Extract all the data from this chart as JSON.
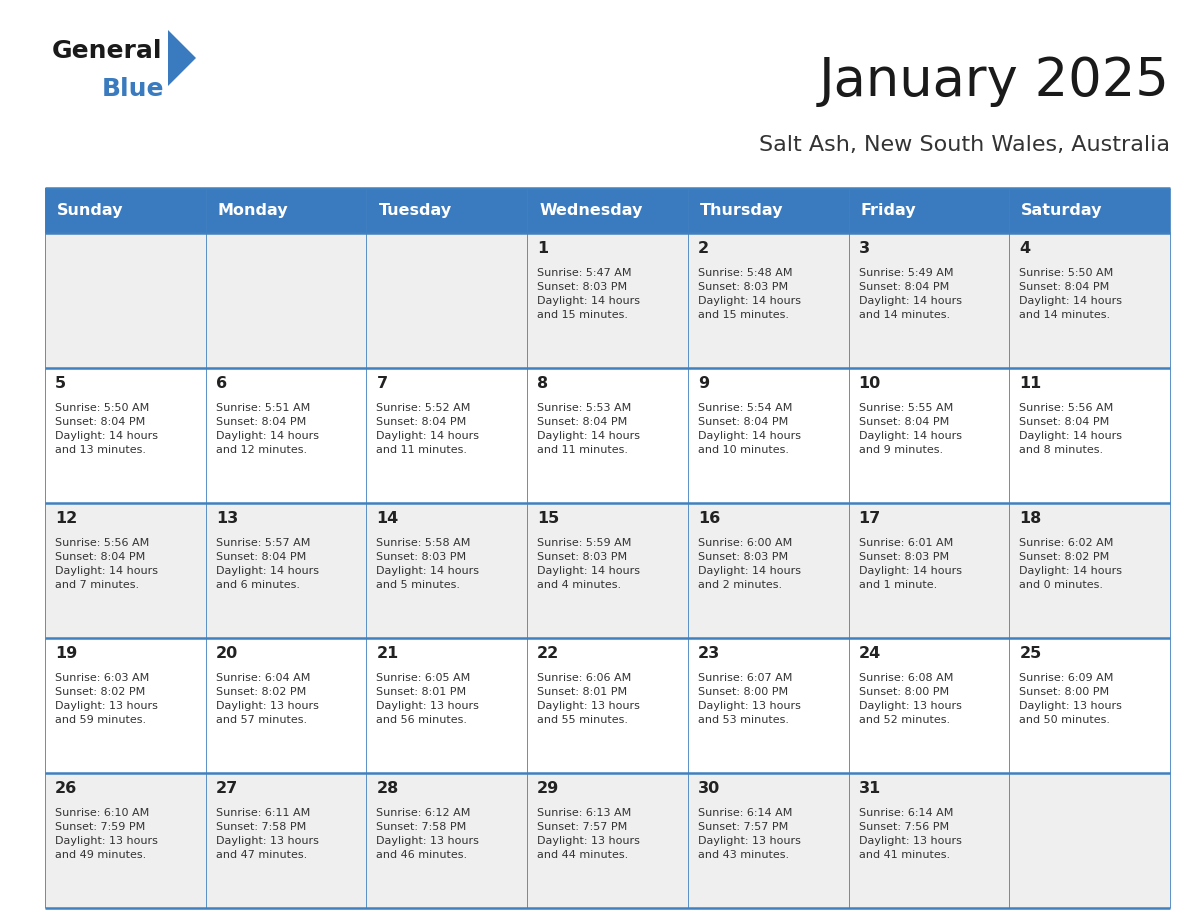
{
  "title": "January 2025",
  "subtitle": "Salt Ash, New South Wales, Australia",
  "days_of_week": [
    "Sunday",
    "Monday",
    "Tuesday",
    "Wednesday",
    "Thursday",
    "Friday",
    "Saturday"
  ],
  "header_bg": "#3a7abf",
  "header_text": "#ffffff",
  "row_bg_odd": "#efefef",
  "row_bg_even": "#ffffff",
  "cell_border_color": "#4080bf",
  "day_number_color": "#222222",
  "text_color": "#333333",
  "title_color": "#1a1a1a",
  "subtitle_color": "#333333",
  "logo_general_color": "#1a1a1a",
  "logo_blue_color": "#3a7abf",
  "logo_triangle_color": "#3a7abf",
  "calendar_data": [
    [
      {
        "day": null,
        "info": null
      },
      {
        "day": null,
        "info": null
      },
      {
        "day": null,
        "info": null
      },
      {
        "day": 1,
        "info": "Sunrise: 5:47 AM\nSunset: 8:03 PM\nDaylight: 14 hours\nand 15 minutes."
      },
      {
        "day": 2,
        "info": "Sunrise: 5:48 AM\nSunset: 8:03 PM\nDaylight: 14 hours\nand 15 minutes."
      },
      {
        "day": 3,
        "info": "Sunrise: 5:49 AM\nSunset: 8:04 PM\nDaylight: 14 hours\nand 14 minutes."
      },
      {
        "day": 4,
        "info": "Sunrise: 5:50 AM\nSunset: 8:04 PM\nDaylight: 14 hours\nand 14 minutes."
      }
    ],
    [
      {
        "day": 5,
        "info": "Sunrise: 5:50 AM\nSunset: 8:04 PM\nDaylight: 14 hours\nand 13 minutes."
      },
      {
        "day": 6,
        "info": "Sunrise: 5:51 AM\nSunset: 8:04 PM\nDaylight: 14 hours\nand 12 minutes."
      },
      {
        "day": 7,
        "info": "Sunrise: 5:52 AM\nSunset: 8:04 PM\nDaylight: 14 hours\nand 11 minutes."
      },
      {
        "day": 8,
        "info": "Sunrise: 5:53 AM\nSunset: 8:04 PM\nDaylight: 14 hours\nand 11 minutes."
      },
      {
        "day": 9,
        "info": "Sunrise: 5:54 AM\nSunset: 8:04 PM\nDaylight: 14 hours\nand 10 minutes."
      },
      {
        "day": 10,
        "info": "Sunrise: 5:55 AM\nSunset: 8:04 PM\nDaylight: 14 hours\nand 9 minutes."
      },
      {
        "day": 11,
        "info": "Sunrise: 5:56 AM\nSunset: 8:04 PM\nDaylight: 14 hours\nand 8 minutes."
      }
    ],
    [
      {
        "day": 12,
        "info": "Sunrise: 5:56 AM\nSunset: 8:04 PM\nDaylight: 14 hours\nand 7 minutes."
      },
      {
        "day": 13,
        "info": "Sunrise: 5:57 AM\nSunset: 8:04 PM\nDaylight: 14 hours\nand 6 minutes."
      },
      {
        "day": 14,
        "info": "Sunrise: 5:58 AM\nSunset: 8:03 PM\nDaylight: 14 hours\nand 5 minutes."
      },
      {
        "day": 15,
        "info": "Sunrise: 5:59 AM\nSunset: 8:03 PM\nDaylight: 14 hours\nand 4 minutes."
      },
      {
        "day": 16,
        "info": "Sunrise: 6:00 AM\nSunset: 8:03 PM\nDaylight: 14 hours\nand 2 minutes."
      },
      {
        "day": 17,
        "info": "Sunrise: 6:01 AM\nSunset: 8:03 PM\nDaylight: 14 hours\nand 1 minute."
      },
      {
        "day": 18,
        "info": "Sunrise: 6:02 AM\nSunset: 8:02 PM\nDaylight: 14 hours\nand 0 minutes."
      }
    ],
    [
      {
        "day": 19,
        "info": "Sunrise: 6:03 AM\nSunset: 8:02 PM\nDaylight: 13 hours\nand 59 minutes."
      },
      {
        "day": 20,
        "info": "Sunrise: 6:04 AM\nSunset: 8:02 PM\nDaylight: 13 hours\nand 57 minutes."
      },
      {
        "day": 21,
        "info": "Sunrise: 6:05 AM\nSunset: 8:01 PM\nDaylight: 13 hours\nand 56 minutes."
      },
      {
        "day": 22,
        "info": "Sunrise: 6:06 AM\nSunset: 8:01 PM\nDaylight: 13 hours\nand 55 minutes."
      },
      {
        "day": 23,
        "info": "Sunrise: 6:07 AM\nSunset: 8:00 PM\nDaylight: 13 hours\nand 53 minutes."
      },
      {
        "day": 24,
        "info": "Sunrise: 6:08 AM\nSunset: 8:00 PM\nDaylight: 13 hours\nand 52 minutes."
      },
      {
        "day": 25,
        "info": "Sunrise: 6:09 AM\nSunset: 8:00 PM\nDaylight: 13 hours\nand 50 minutes."
      }
    ],
    [
      {
        "day": 26,
        "info": "Sunrise: 6:10 AM\nSunset: 7:59 PM\nDaylight: 13 hours\nand 49 minutes."
      },
      {
        "day": 27,
        "info": "Sunrise: 6:11 AM\nSunset: 7:58 PM\nDaylight: 13 hours\nand 47 minutes."
      },
      {
        "day": 28,
        "info": "Sunrise: 6:12 AM\nSunset: 7:58 PM\nDaylight: 13 hours\nand 46 minutes."
      },
      {
        "day": 29,
        "info": "Sunrise: 6:13 AM\nSunset: 7:57 PM\nDaylight: 13 hours\nand 44 minutes."
      },
      {
        "day": 30,
        "info": "Sunrise: 6:14 AM\nSunset: 7:57 PM\nDaylight: 13 hours\nand 43 minutes."
      },
      {
        "day": 31,
        "info": "Sunrise: 6:14 AM\nSunset: 7:56 PM\nDaylight: 13 hours\nand 41 minutes."
      },
      {
        "day": null,
        "info": null
      }
    ]
  ],
  "fig_width": 11.88,
  "fig_height": 9.18,
  "dpi": 100
}
